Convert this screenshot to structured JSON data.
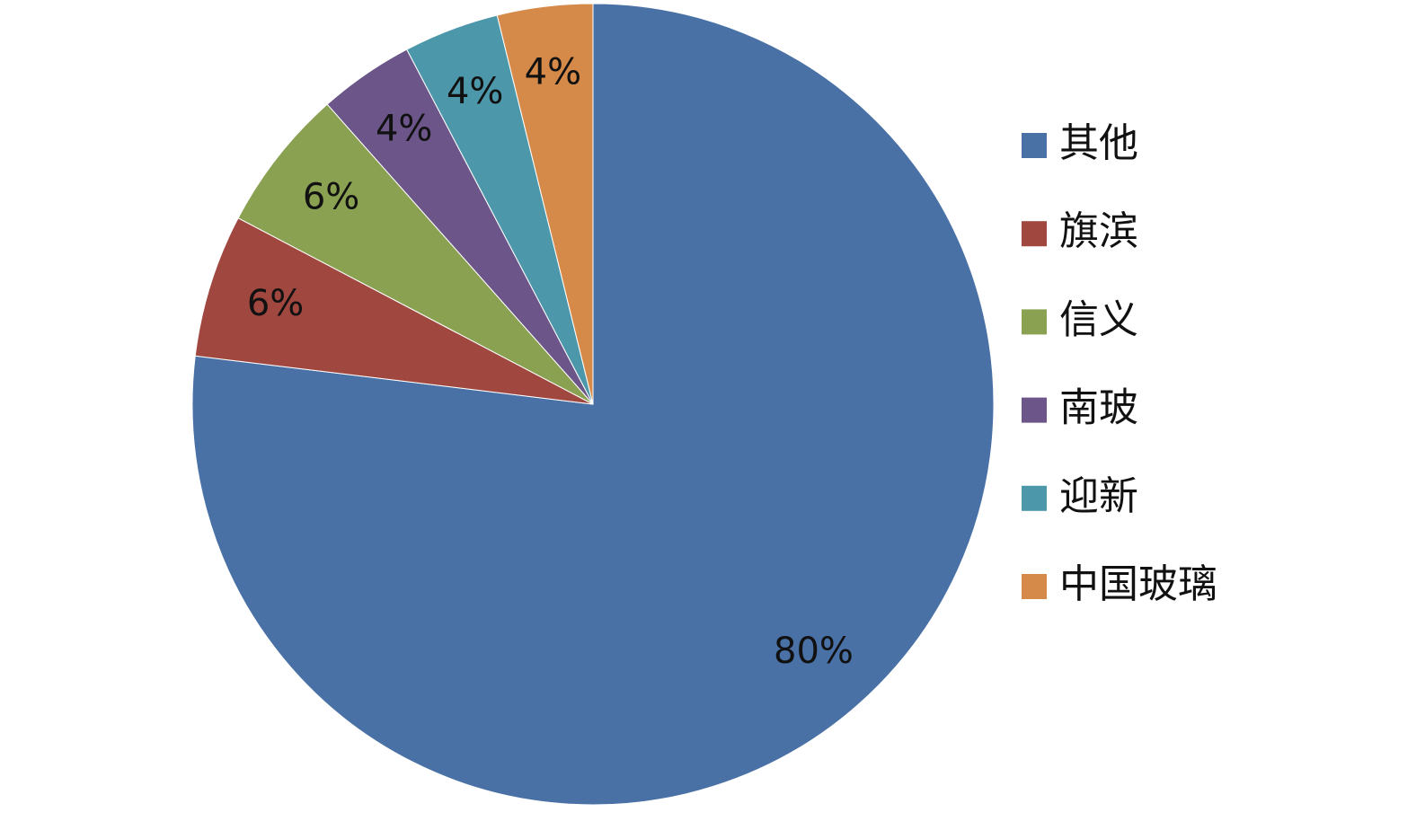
{
  "chart_data": {
    "type": "pie",
    "categories": [
      "其他",
      "旗滨",
      "信义",
      "南玻",
      "迎新",
      "中国玻璃"
    ],
    "values": [
      80,
      6,
      6,
      4,
      4,
      4
    ],
    "value_labels": [
      "80%",
      "6%",
      "6%",
      "4%",
      "4%",
      "4%"
    ],
    "colors": [
      "#4a71a6",
      "#a0473f",
      "#8aa152",
      "#6b5589",
      "#4d97aa",
      "#d68a4a"
    ],
    "legend": "right"
  }
}
